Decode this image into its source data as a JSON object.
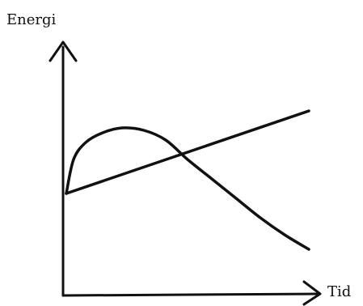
{
  "chart_data": {
    "type": "line",
    "title": "",
    "xlabel": "Tid",
    "ylabel": "Energi",
    "grid": false,
    "ticks": false,
    "xlim": [
      0,
      10
    ],
    "ylim": [
      0,
      10
    ],
    "series": [
      {
        "x": [
          0,
          0.3,
          0.8,
          1.5,
          2.3,
          3.2,
          4.1,
          5.0,
          6.0,
          7.0,
          8.0,
          9.0,
          10.0
        ],
        "values": [
          4.2,
          5.6,
          6.3,
          6.7,
          6.9,
          6.8,
          6.4,
          5.6,
          4.8,
          4.0,
          3.2,
          2.5,
          1.9
        ],
        "color": "#111111"
      },
      {
        "x": [
          0,
          10
        ],
        "values": [
          4.2,
          7.6
        ],
        "color": "#111111"
      }
    ]
  }
}
